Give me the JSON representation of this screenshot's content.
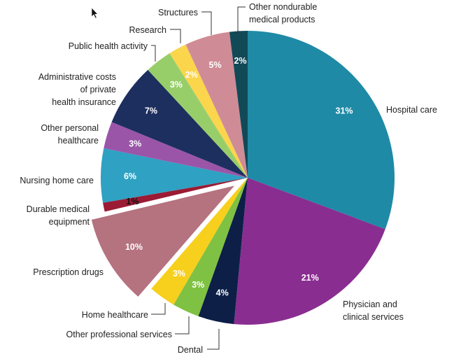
{
  "chart_data": {
    "type": "pie",
    "title": "",
    "slices": [
      {
        "label": "Hospital care",
        "value": 31,
        "display": "31%",
        "color": "#1f8aa6"
      },
      {
        "label": "Physician and clinical services",
        "value": 21,
        "display": "21%",
        "color": "#8a2d91"
      },
      {
        "label": "Dental",
        "value": 4,
        "display": "4%",
        "color": "#0d1f47"
      },
      {
        "label": "Other professional services",
        "value": 3,
        "display": "3%",
        "color": "#7fc142"
      },
      {
        "label": "Home healthcare",
        "value": 3,
        "display": "3%",
        "color": "#f7cf1d"
      },
      {
        "label": "Prescription drugs",
        "value": 10,
        "display": "10%",
        "color": "#b5727f",
        "exploded": true
      },
      {
        "label": "Durable medical equipment",
        "value": 1,
        "display": "1%",
        "color": "#9b1b34"
      },
      {
        "label": "Nursing home care",
        "value": 6,
        "display": "6%",
        "color": "#2fa1c3"
      },
      {
        "label": "Other personal healthcare",
        "value": 3,
        "display": "3%",
        "color": "#9a55a9"
      },
      {
        "label": "Administrative costs of private health insurance",
        "value": 7,
        "display": "7%",
        "color": "#1d2f5f"
      },
      {
        "label": "Public health activity",
        "value": 3,
        "display": "3%",
        "color": "#98ce6a"
      },
      {
        "label": "Research",
        "value": 2,
        "display": "2%",
        "color": "#fbd54c"
      },
      {
        "label": "Structures",
        "value": 5,
        "display": "5%",
        "color": "#cf8c96"
      },
      {
        "label": "Other nondurable medical products",
        "value": 2,
        "display": "2%",
        "color": "#124957"
      }
    ]
  }
}
